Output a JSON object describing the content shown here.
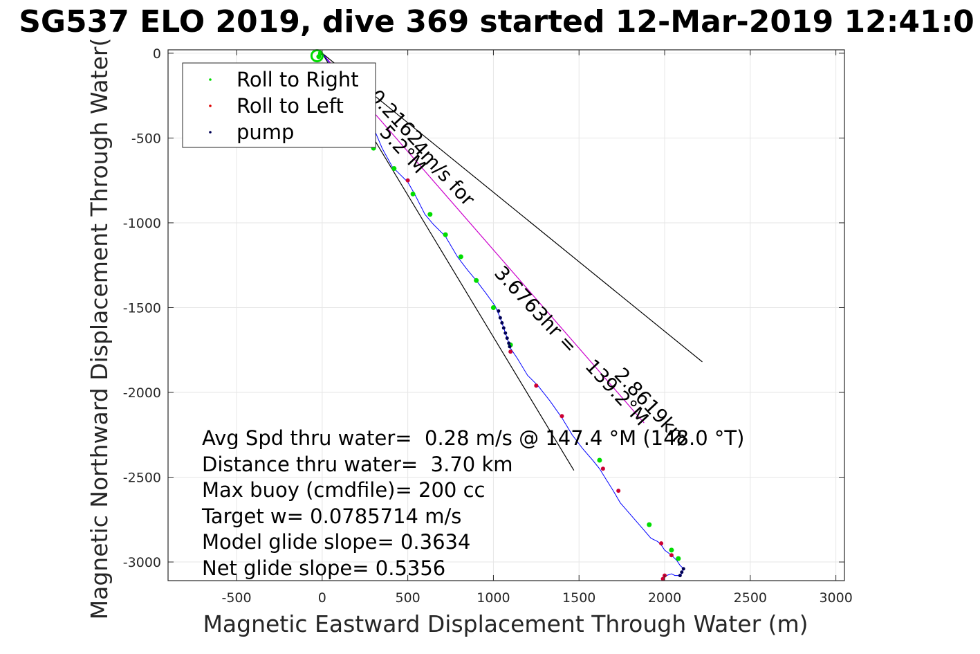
{
  "chart_data": {
    "type": "scatter",
    "title": "SG537 ELO 2019, dive 369 started 12-Mar-2019 12:41:0",
    "xlabel": "Magnetic Eastward Displacement Through Water (m)",
    "ylabel": "Magnetic Northward Displacement Through Water(",
    "xlim": [
      -900,
      3050
    ],
    "ylim": [
      -3110,
      20
    ],
    "xticks": [
      -500,
      0,
      500,
      1000,
      1500,
      2000,
      2500,
      3000
    ],
    "yticks": [
      0,
      -500,
      -1000,
      -1500,
      -2000,
      -2500,
      -3000
    ],
    "grid": true,
    "legend_position": "top-left",
    "legend": [
      {
        "label": "Roll to Right",
        "color": "#00dd00"
      },
      {
        "label": "Roll to Left",
        "color": "#dd0000"
      },
      {
        "label": "pump",
        "color": "#000055"
      }
    ],
    "track": {
      "name": "track",
      "color": "#0000ff",
      "x": [
        0,
        60,
        140,
        220,
        300,
        350,
        410,
        460,
        500,
        540,
        600,
        650,
        720,
        790,
        850,
        900,
        960,
        1010,
        1040,
        1070,
        1100,
        1140,
        1200,
        1260,
        1330,
        1400,
        1460,
        1520,
        1580,
        1620,
        1650,
        1700,
        1740,
        1800,
        1860,
        1920,
        1960,
        1980,
        2000,
        2040,
        2070,
        2090,
        2110,
        2100,
        2080,
        2060,
        2040,
        2010,
        1990
      ],
      "y": [
        0,
        -80,
        -200,
        -330,
        -440,
        -560,
        -670,
        -720,
        -760,
        -830,
        -950,
        -1010,
        -1080,
        -1200,
        -1280,
        -1340,
        -1420,
        -1490,
        -1560,
        -1650,
        -1740,
        -1800,
        -1900,
        -1960,
        -2050,
        -2150,
        -2250,
        -2330,
        -2400,
        -2450,
        -2500,
        -2580,
        -2650,
        -2720,
        -2790,
        -2860,
        -2880,
        -2900,
        -2930,
        -2960,
        -2990,
        -3020,
        -3040,
        -3070,
        -3080,
        -3080,
        -3070,
        -3080,
        -3100
      ]
    },
    "roll_right": {
      "x": [
        -20,
        300,
        420,
        530,
        630,
        720,
        810,
        900,
        1000,
        1100,
        1620,
        1910,
        2040,
        2080,
        -10
      ],
      "y": [
        -20,
        -560,
        -680,
        -830,
        -950,
        -1070,
        -1200,
        -1340,
        -1500,
        -1720,
        -2400,
        -2780,
        -2930,
        -2980,
        0
      ]
    },
    "roll_left": {
      "x": [
        500,
        1100,
        1250,
        1400,
        1640,
        1730,
        1980,
        2040,
        2000,
        1990
      ],
      "y": [
        -750,
        -1760,
        -1960,
        -2140,
        -2450,
        -2580,
        -2890,
        -2960,
        -3080,
        -3100
      ]
    },
    "pump": {
      "x": [
        1030,
        1040,
        1050,
        1060,
        1070,
        1080,
        1090,
        1095,
        2110,
        2100,
        2090
      ],
      "y": [
        -1520,
        -1560,
        -1590,
        -1620,
        -1650,
        -1680,
        -1710,
        -1730,
        -3040,
        -3060,
        -3080
      ]
    },
    "reference_lines": [
      {
        "name": "bearing-line",
        "x": [
          0,
          1880
        ],
        "y": [
          0,
          -2180
        ],
        "color": "#cc00cc"
      },
      {
        "name": "cone-line-outer",
        "x": [
          0,
          2220
        ],
        "y": [
          0,
          -1820
        ],
        "color": "#000000"
      },
      {
        "name": "cone-line-inner",
        "x": [
          0,
          1470
        ],
        "y": [
          0,
          -2460
        ],
        "color": "#000000"
      }
    ],
    "annotations": [
      {
        "text": "0.2162",
        "x": 270,
        "y": -260,
        "angle": 47
      },
      {
        "text": "4m/s for",
        "x": 520,
        "y": -560,
        "angle": 47
      },
      {
        "text": "3.6763hr =",
        "x": 1000,
        "y": -1300,
        "angle": 47
      },
      {
        "text": "2.8619km",
        "x": 1700,
        "y": -1900,
        "angle": 47
      },
      {
        "text": "139.2°M",
        "x": 1530,
        "y": -1850,
        "angle": 47
      },
      {
        "text": "5.2°M",
        "x": 330,
        "y": -470,
        "angle": 47
      }
    ],
    "stats": [
      "Avg Spd thru water=  0.28 m/s @ 147.4 °M (148.0 °T)",
      "Distance thru water=  3.70 km",
      "Max buoy (cmdfile)= 200 cc",
      "Target w= 0.0785714 m/s",
      "Model glide slope= 0.3634",
      "Net glide slope= 0.5356"
    ]
  }
}
